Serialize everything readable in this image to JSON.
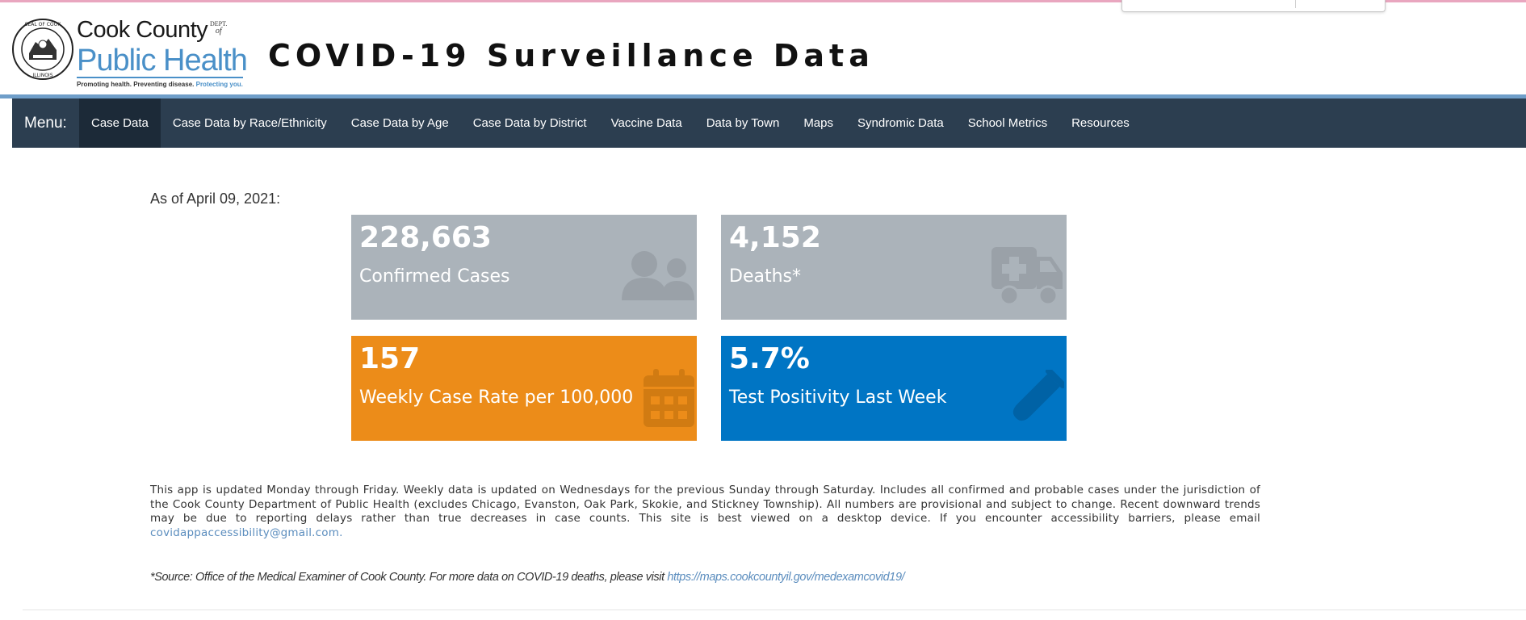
{
  "logo": {
    "line1": "Cook County",
    "dept": "DEPT.",
    "of": "of",
    "line2": "Public Health",
    "tagline_dark": "Promoting health. Preventing disease.",
    "tagline_blue": "Protecting you.",
    "seal_text": "SEAL OF COOK COUNTY ILLINOIS"
  },
  "header": {
    "title": "COVID-19 Surveillance Data"
  },
  "nav": {
    "menu_label": "Menu:",
    "items": [
      {
        "label": "Case Data",
        "active": true
      },
      {
        "label": "Case Data by Race/Ethnicity"
      },
      {
        "label": "Case Data by Age"
      },
      {
        "label": "Case Data by District"
      },
      {
        "label": "Vaccine Data"
      },
      {
        "label": "Data by Town"
      },
      {
        "label": "Maps"
      },
      {
        "label": "Syndromic Data"
      },
      {
        "label": "School Metrics"
      },
      {
        "label": "Resources"
      }
    ]
  },
  "summary": {
    "as_of": "As of April 09, 2021:",
    "cards": [
      {
        "value": "228,663",
        "label": "Confirmed Cases",
        "icon": "users-icon",
        "color": "#abb3ba"
      },
      {
        "value": "4,152",
        "label": "Deaths*",
        "icon": "ambulance-icon",
        "color": "#abb3ba"
      },
      {
        "value": "157",
        "label": "Weekly Case Rate per 100,000",
        "icon": "calendar-icon",
        "color": "#ec8c19"
      },
      {
        "value": "5.7%",
        "label": "Test Positivity Last Week",
        "icon": "test-tube-icon",
        "color": "#0075c4"
      }
    ]
  },
  "notes": {
    "main": "This app is updated Monday through Friday. Weekly data is updated on Wednesdays for the previous Sunday through Saturday. Includes all confirmed and probable cases under the jurisdiction of the Cook County Department of Public Health (excludes Chicago, Evanston, Oak Park, Skokie, and Stickney Township). All numbers are provisional and subject to change. Recent downward trends may be due to reporting delays rather than true decreases in case counts. This site is best viewed on a desktop device. If you encounter accessibility barriers, please email ",
    "email": "covidappaccessibility@gmail.com.",
    "source_text": "*Source: Office of the Medical Examiner of Cook County. For more data on COVID-19 deaths, please visit ",
    "source_link": "https://maps.cookcountyil.gov/medexamcovid19/"
  }
}
